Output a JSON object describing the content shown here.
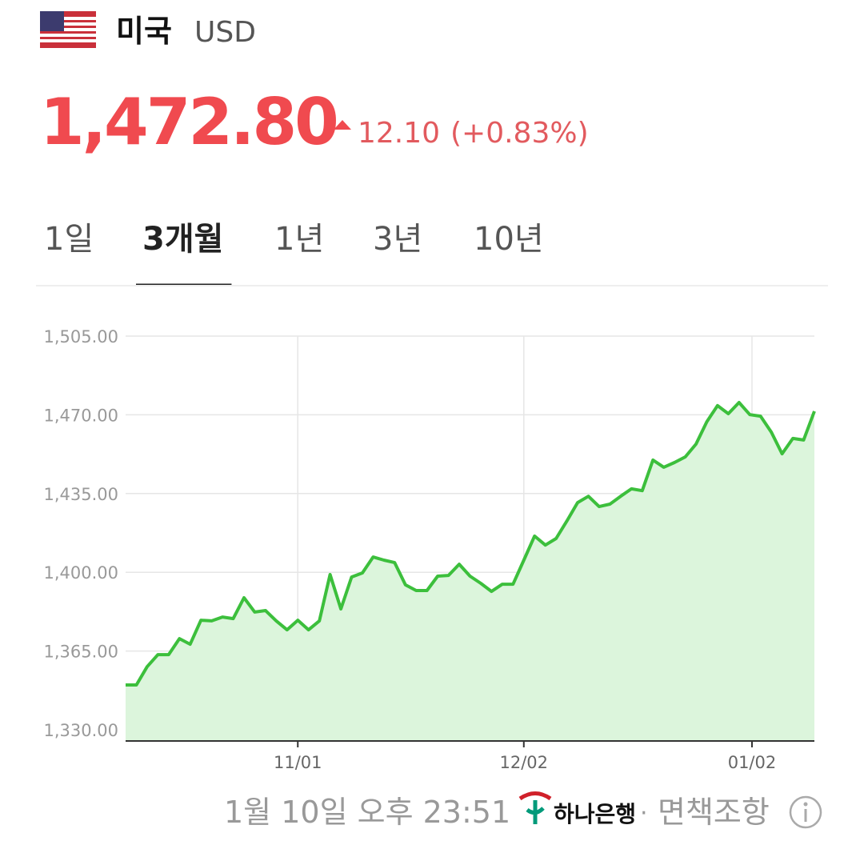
{
  "header": {
    "country": "미국",
    "currency": "USD"
  },
  "price": {
    "value": "1,472.80",
    "change": "12.10",
    "change_pct": "(+0.83%)"
  },
  "tabs": [
    "1일",
    "3개월",
    "1년",
    "3년",
    "10년"
  ],
  "active_tab": 1,
  "chart_data": {
    "type": "line",
    "color": "#3cbf3c",
    "fill": "#dcf5dc",
    "values": [
      1349.9,
      1349.9,
      1358,
      1363.4,
      1363.4,
      1370.5,
      1368,
      1378.7,
      1378.4,
      1380.1,
      1379.4,
      1388.7,
      1382.3,
      1383,
      1378.4,
      1374.4,
      1378.7,
      1374.4,
      1378.4,
      1399,
      1383.7,
      1397.9,
      1399.7,
      1406.8,
      1405.4,
      1404.3,
      1394.4,
      1391.9,
      1391.9,
      1398.3,
      1398.6,
      1403.6,
      1398.3,
      1395.1,
      1391.5,
      1394.7,
      1394.7,
      1405.4,
      1416.1,
      1412.1,
      1415,
      1422.8,
      1431,
      1433.8,
      1429.2,
      1430.3,
      1433.8,
      1437.1,
      1436.3,
      1449.9,
      1446.7,
      1448.8,
      1451.3,
      1457,
      1466.9,
      1474.1,
      1470.5,
      1475.5,
      1470.1,
      1469.4,
      1462.3,
      1452.7,
      1459.5,
      1458.8,
      1471.6
    ],
    "xlim": [
      0,
      64
    ],
    "xticks": [
      {
        "value": 16,
        "label": "11/01"
      },
      {
        "value": 37,
        "label": "12/02"
      },
      {
        "value": 58.2,
        "label": "01/02"
      }
    ],
    "ylim": [
      1325,
      1510
    ],
    "yticks": [
      {
        "value": 1330,
        "label": "1,330.00"
      },
      {
        "value": 1365,
        "label": "1,365.00"
      },
      {
        "value": 1400,
        "label": "1,400.00"
      },
      {
        "value": 1435,
        "label": "1,435.00"
      },
      {
        "value": 1470,
        "label": "1,470.00"
      },
      {
        "value": 1505,
        "label": "1,505.00"
      }
    ],
    "grid": true
  },
  "footer": {
    "timestamp": "1월 10일 오후 23:51",
    "bank": "하나은행",
    "separator": "·",
    "disclaimer": "면책조항"
  }
}
